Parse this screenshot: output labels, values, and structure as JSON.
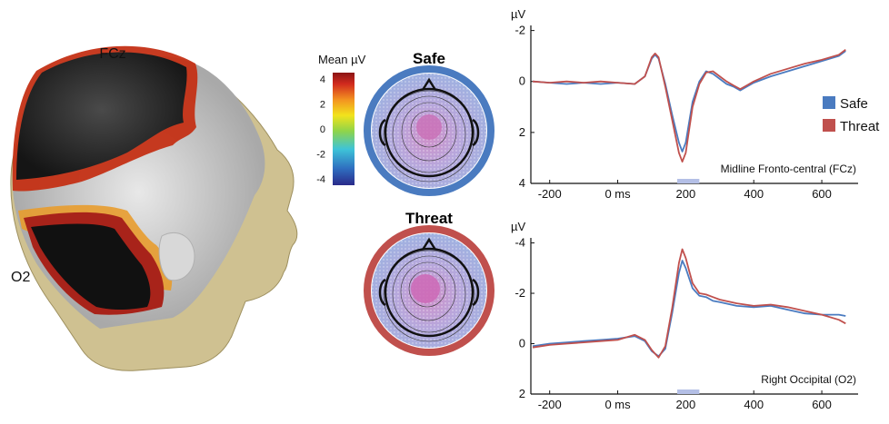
{
  "head_labels": {
    "fcz": "FCz",
    "o2": "O2"
  },
  "colorbar": {
    "title": "Mean µV",
    "ticks": [
      "4",
      "2",
      "0",
      "-2",
      "-4"
    ],
    "colors": [
      "#2a2a8a",
      "#2f6fc0",
      "#3ec4d8",
      "#8fd44a",
      "#f2e31c",
      "#f39220",
      "#d12a1e",
      "#8a1414"
    ]
  },
  "topomaps": {
    "safe": {
      "title": "Safe",
      "ring_color": "#4a7bc0"
    },
    "threat": {
      "title": "Threat",
      "ring_color": "#c0504d"
    }
  },
  "legend": {
    "safe": {
      "label": "Safe",
      "color": "#4a7bc0"
    },
    "threat": {
      "label": "Threat",
      "color": "#c0504d"
    }
  },
  "chart_data": [
    {
      "type": "line",
      "title": "Midline Fronto-central (FCz)",
      "ylabel": "µV",
      "y_inverted": true,
      "xlim": [
        -250,
        680
      ],
      "ylim": [
        -2.2,
        4
      ],
      "x_ticks": [
        -200,
        0,
        200,
        400,
        600
      ],
      "x_tick_labels": [
        "-200",
        "0 ms",
        "200",
        "400",
        "600"
      ],
      "y_ticks": [
        -2,
        0,
        2,
        4
      ],
      "y_tick_labels": [
        "-2",
        "0",
        "2",
        "4"
      ],
      "highlight": [
        175,
        240
      ],
      "series": [
        {
          "name": "Safe",
          "color": "#4a7bc0",
          "x": [
            -250,
            -200,
            -150,
            -100,
            -50,
            0,
            50,
            80,
            100,
            110,
            120,
            140,
            160,
            180,
            190,
            200,
            210,
            220,
            240,
            260,
            280,
            300,
            320,
            340,
            360,
            380,
            400,
            450,
            500,
            550,
            600,
            650,
            670
          ],
          "y": [
            0,
            0.05,
            0.1,
            0.05,
            0.1,
            0.05,
            0.1,
            -0.2,
            -0.9,
            -1.05,
            -0.9,
            0.1,
            1.3,
            2.4,
            2.75,
            2.4,
            1.6,
            0.8,
            0,
            -0.4,
            -0.3,
            -0.1,
            0.1,
            0.2,
            0.35,
            0.2,
            0.05,
            -0.2,
            -0.4,
            -0.6,
            -0.8,
            -1.0,
            -1.2
          ]
        },
        {
          "name": "Threat",
          "color": "#c0504d",
          "x": [
            -250,
            -200,
            -150,
            -100,
            -50,
            0,
            50,
            80,
            100,
            110,
            120,
            140,
            160,
            180,
            190,
            200,
            210,
            220,
            240,
            260,
            280,
            300,
            320,
            340,
            360,
            380,
            400,
            450,
            500,
            550,
            600,
            650,
            670
          ],
          "y": [
            0,
            0.05,
            0.0,
            0.05,
            0.0,
            0.05,
            0.1,
            -0.2,
            -0.95,
            -1.1,
            -0.95,
            0.2,
            1.5,
            2.8,
            3.15,
            2.8,
            1.9,
            1.0,
            0.1,
            -0.35,
            -0.4,
            -0.2,
            0.0,
            0.15,
            0.3,
            0.15,
            0.0,
            -0.3,
            -0.5,
            -0.7,
            -0.85,
            -1.05,
            -1.25
          ]
        }
      ]
    },
    {
      "type": "line",
      "title": "Right Occipital (O2)",
      "ylabel": "µV",
      "y_inverted": true,
      "xlim": [
        -250,
        680
      ],
      "ylim": [
        -4.2,
        2
      ],
      "x_ticks": [
        -200,
        0,
        200,
        400,
        600
      ],
      "x_tick_labels": [
        "-200",
        "0 ms",
        "200",
        "400",
        "600"
      ],
      "y_ticks": [
        -4,
        -2,
        0,
        2
      ],
      "y_tick_labels": [
        "-4",
        "-2",
        "0",
        "2"
      ],
      "highlight": [
        175,
        240
      ],
      "series": [
        {
          "name": "Safe",
          "color": "#4a7bc0",
          "x": [
            -250,
            -200,
            -150,
            -100,
            -50,
            0,
            50,
            80,
            100,
            120,
            140,
            160,
            180,
            190,
            200,
            210,
            220,
            240,
            260,
            280,
            300,
            350,
            400,
            450,
            500,
            550,
            600,
            650,
            670
          ],
          "y": [
            0.1,
            0.0,
            -0.05,
            -0.1,
            -0.15,
            -0.2,
            -0.3,
            -0.1,
            0.3,
            0.5,
            0.2,
            -1.2,
            -2.8,
            -3.3,
            -3.0,
            -2.6,
            -2.2,
            -1.9,
            -1.85,
            -1.7,
            -1.65,
            -1.5,
            -1.45,
            -1.5,
            -1.35,
            -1.2,
            -1.15,
            -1.15,
            -1.1
          ]
        },
        {
          "name": "Threat",
          "color": "#c0504d",
          "x": [
            -250,
            -200,
            -150,
            -100,
            -50,
            0,
            50,
            80,
            100,
            120,
            140,
            160,
            180,
            190,
            200,
            210,
            220,
            240,
            260,
            280,
            300,
            350,
            400,
            450,
            500,
            550,
            600,
            650,
            670
          ],
          "y": [
            0.15,
            0.05,
            0.0,
            -0.05,
            -0.1,
            -0.15,
            -0.35,
            -0.15,
            0.25,
            0.55,
            0.1,
            -1.4,
            -3.2,
            -3.75,
            -3.4,
            -2.9,
            -2.4,
            -2.0,
            -1.95,
            -1.85,
            -1.75,
            -1.6,
            -1.5,
            -1.55,
            -1.45,
            -1.3,
            -1.15,
            -0.95,
            -0.8
          ]
        }
      ]
    }
  ]
}
